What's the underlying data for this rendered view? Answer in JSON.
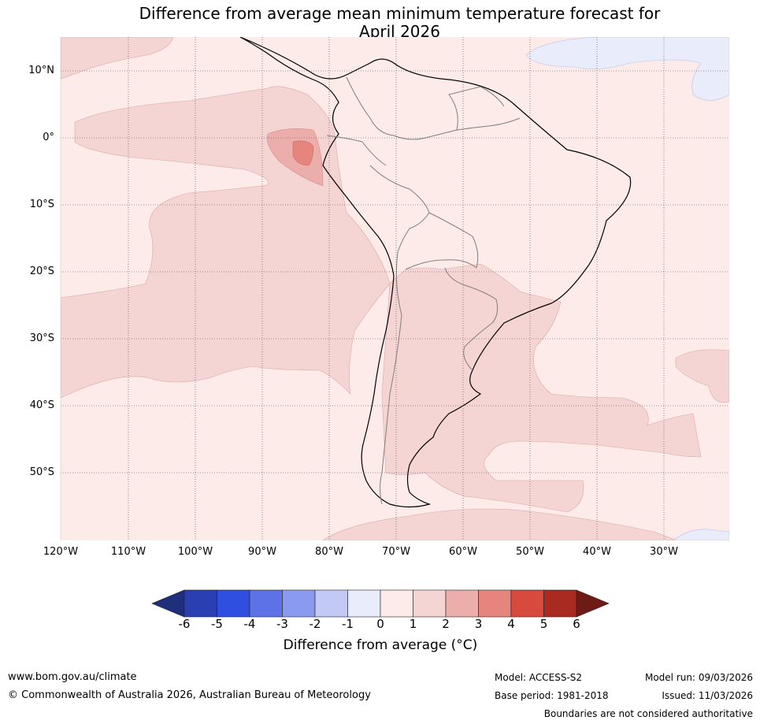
{
  "title": {
    "line1": "Difference from average mean minimum temperature forecast for",
    "line2": "April 2026"
  },
  "lat_labels": [
    "10°N",
    "0°",
    "10°S",
    "20°S",
    "30°S",
    "40°S",
    "50°S"
  ],
  "lon_labels": [
    "120°W",
    "110°W",
    "100°W",
    "90°W",
    "80°W",
    "70°W",
    "60°W",
    "50°W",
    "40°W",
    "30°W"
  ],
  "colorbar": {
    "title": "Difference from average (°C)",
    "ticks": [
      "-6",
      "-5",
      "-4",
      "-3",
      "-2",
      "-1",
      "0",
      "1",
      "2",
      "3",
      "4",
      "5",
      "6"
    ],
    "colors": [
      "#1f2f7c",
      "#2a3fb2",
      "#2f4fe0",
      "#5c72e6",
      "#8a9aee",
      "#c2c9f4",
      "#e8ecfb",
      "#fcebe9",
      "#f5d5d3",
      "#ebaeaa",
      "#e5857e",
      "#d94a3e",
      "#a82a20",
      "#6e1b16"
    ]
  },
  "map": {
    "region": "South America",
    "lat_range": [
      15,
      -60
    ],
    "lon_range": [
      -120,
      -20
    ],
    "anomaly_fields": [
      {
        "region": "Most of South America and surrounding oceans",
        "range": "0 to 1"
      },
      {
        "region": "Eastern Pacific and southern Atlantic",
        "range": "1 to 2"
      },
      {
        "region": "Off the coast of Ecuador",
        "range": "2 to 3"
      },
      {
        "region": "North Atlantic and far South Atlantic",
        "range": "-1 to 0"
      }
    ]
  },
  "footer": {
    "website": "www.bom.gov.au/climate",
    "copyright": "© Commonwealth of Australia 2026, Australian Bureau of Meteorology",
    "model": "Model: ACCESS-S2",
    "base_period": "Base period: 1981-2018",
    "model_run": "Model run: 09/03/2026",
    "issued": "Issued: 11/03/2026",
    "boundaries": "Boundaries are not considered authoritative"
  }
}
